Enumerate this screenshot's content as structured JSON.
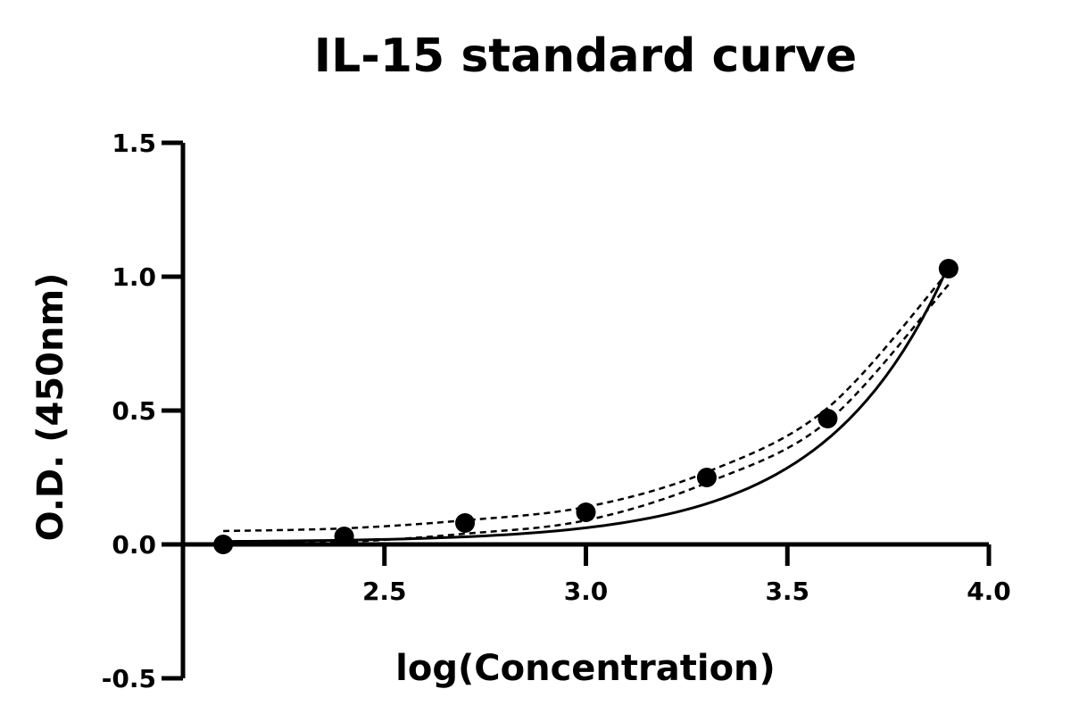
{
  "chart_data": {
    "type": "scatter",
    "title": "IL-15 standard curve",
    "xlabel": "log(Concentration)",
    "ylabel": "O.D. (450nm)",
    "xlim": [
      2.0,
      4.0
    ],
    "ylim": [
      -0.5,
      1.5
    ],
    "x_ticks": [
      2.5,
      3.0,
      3.5,
      4.0
    ],
    "x_tick_labels": [
      "2.5",
      "3.0",
      "3.5",
      "4.0"
    ],
    "y_ticks": [
      -0.5,
      0.0,
      0.5,
      1.0,
      1.5
    ],
    "y_tick_labels": [
      "-0.5",
      "0.0",
      "0.5",
      "1.0",
      "1.5"
    ],
    "grid": false,
    "series": [
      {
        "points": [
          {
            "x": 2.1,
            "y": 0.0
          },
          {
            "x": 2.4,
            "y": 0.03
          },
          {
            "x": 2.7,
            "y": 0.08
          },
          {
            "x": 3.0,
            "y": 0.12
          },
          {
            "x": 3.3,
            "y": 0.25
          },
          {
            "x": 3.6,
            "y": 0.47
          },
          {
            "x": 3.9,
            "y": 1.03
          }
        ]
      }
    ],
    "fit_curve": {
      "style": "solid",
      "x_range": [
        2.1,
        3.9
      ],
      "model": "y = 0.0084 + 0.00278 * exp(3.288 * (x - 2.1))"
    },
    "confidence_band": {
      "style": "dashed",
      "upper": [
        {
          "x": 2.1,
          "y": 0.05
        },
        {
          "x": 2.4,
          "y": 0.06
        },
        {
          "x": 2.7,
          "y": 0.09
        },
        {
          "x": 3.0,
          "y": 0.14
        },
        {
          "x": 3.3,
          "y": 0.27
        },
        {
          "x": 3.6,
          "y": 0.51
        },
        {
          "x": 3.9,
          "y": 1.02
        }
      ],
      "lower": [
        {
          "x": 2.1,
          "y": 0.01
        },
        {
          "x": 2.4,
          "y": 0.01
        },
        {
          "x": 2.7,
          "y": 0.04
        },
        {
          "x": 3.0,
          "y": 0.09
        },
        {
          "x": 3.3,
          "y": 0.23
        },
        {
          "x": 3.6,
          "y": 0.46
        },
        {
          "x": 3.9,
          "y": 0.97
        }
      ]
    },
    "colors": {
      "points": "#000000",
      "axes": "#000000",
      "fit": "#000000",
      "band": "#000000"
    }
  }
}
